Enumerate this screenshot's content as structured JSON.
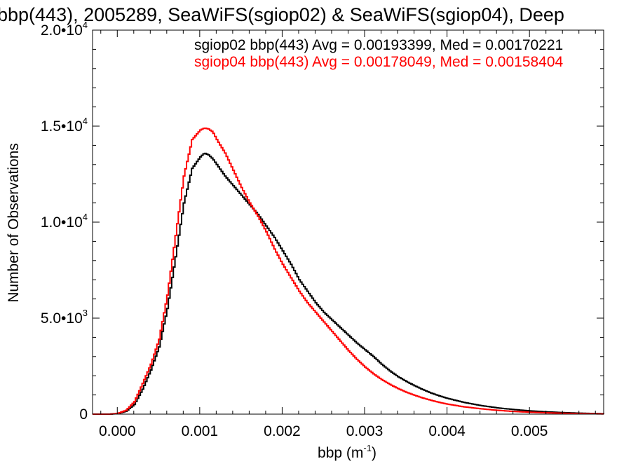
{
  "chart_data": {
    "type": "line",
    "title": "bbp(443), 2005289, SeaWiFS(sgiop02) & SeaWiFS(sgiop04), Deep",
    "xlabel": "bbp (m",
    "xlabel_sup": "-1",
    "xlabel_close": ")",
    "ylabel": "Number of Observations",
    "xlim": [
      -0.0003,
      0.0059
    ],
    "ylim": [
      0,
      20000
    ],
    "xticks": [
      {
        "value": 0.0,
        "label": "0.000"
      },
      {
        "value": 0.001,
        "label": "0.001"
      },
      {
        "value": 0.002,
        "label": "0.002"
      },
      {
        "value": 0.003,
        "label": "0.003"
      },
      {
        "value": 0.004,
        "label": "0.004"
      },
      {
        "value": 0.005,
        "label": "0.005"
      }
    ],
    "yticks": [
      {
        "value": 0,
        "label": "0",
        "sup": ""
      },
      {
        "value": 5000,
        "label": "5.0•10",
        "sup": "3"
      },
      {
        "value": 10000,
        "label": "1.0•10",
        "sup": "4"
      },
      {
        "value": 15000,
        "label": "1.5•10",
        "sup": "4"
      },
      {
        "value": 20000,
        "label": "2.0•10",
        "sup": "4"
      }
    ],
    "grid": false,
    "legend_position": "top-right",
    "series": [
      {
        "name": "sgiop02 bbp(443) Avg = 0.00193399, Med = 0.00170221",
        "color": "#000000",
        "x": [
          -0.0003,
          -0.0001,
          0.0,
          0.0001,
          0.0002,
          0.0003,
          0.0004,
          0.0005,
          0.0006,
          0.0007,
          0.0008,
          0.0009,
          0.001,
          0.00105,
          0.0011,
          0.00115,
          0.0012,
          0.0013,
          0.0014,
          0.0015,
          0.0016,
          0.0017,
          0.0018,
          0.0019,
          0.002,
          0.0021,
          0.0022,
          0.0023,
          0.0024,
          0.0025,
          0.0026,
          0.0027,
          0.0028,
          0.0029,
          0.003,
          0.0031,
          0.0032,
          0.0033,
          0.0034,
          0.0035,
          0.0036,
          0.0037,
          0.0038,
          0.0039,
          0.004,
          0.0042,
          0.0044,
          0.0046,
          0.0048,
          0.005,
          0.0052,
          0.0054,
          0.0056,
          0.0059
        ],
        "y": [
          0,
          0,
          30,
          150,
          500,
          1300,
          2300,
          3500,
          5500,
          8200,
          11000,
          12800,
          13400,
          13600,
          13500,
          13300,
          13000,
          12400,
          11900,
          11400,
          10900,
          10400,
          9800,
          9200,
          8500,
          7800,
          7000,
          6400,
          5800,
          5300,
          4900,
          4500,
          4100,
          3700,
          3350,
          3000,
          2600,
          2250,
          1950,
          1700,
          1480,
          1280,
          1100,
          950,
          820,
          610,
          450,
          330,
          240,
          170,
          120,
          80,
          50,
          20
        ]
      },
      {
        "name": "sgiop04 bbp(443) Avg = 0.00178049, Med = 0.00158404",
        "color": "#ff0000",
        "x": [
          -0.0003,
          -0.0001,
          0.0,
          0.0001,
          0.0002,
          0.0003,
          0.0004,
          0.0005,
          0.0006,
          0.0007,
          0.0008,
          0.0009,
          0.001,
          0.00105,
          0.0011,
          0.00115,
          0.0012,
          0.0013,
          0.0014,
          0.0015,
          0.0016,
          0.0017,
          0.0018,
          0.0019,
          0.002,
          0.0021,
          0.0022,
          0.0023,
          0.0024,
          0.0025,
          0.0026,
          0.0027,
          0.0028,
          0.0029,
          0.003,
          0.0031,
          0.0032,
          0.0033,
          0.0034,
          0.0035,
          0.0036,
          0.0037,
          0.0038,
          0.0039,
          0.004,
          0.0042,
          0.0044,
          0.0046,
          0.0048,
          0.005,
          0.0052,
          0.0054,
          0.0056,
          0.0059
        ],
        "y": [
          0,
          0,
          40,
          200,
          650,
          1600,
          2600,
          3900,
          6200,
          9300,
          12400,
          14300,
          14800,
          14900,
          14850,
          14700,
          14300,
          13600,
          12700,
          11800,
          11000,
          10300,
          9500,
          8600,
          7800,
          7100,
          6400,
          5800,
          5300,
          4800,
          4300,
          3800,
          3300,
          2850,
          2450,
          2100,
          1800,
          1550,
          1330,
          1140,
          980,
          840,
          720,
          610,
          520,
          380,
          280,
          200,
          140,
          100,
          70,
          45,
          30,
          10
        ]
      }
    ]
  }
}
